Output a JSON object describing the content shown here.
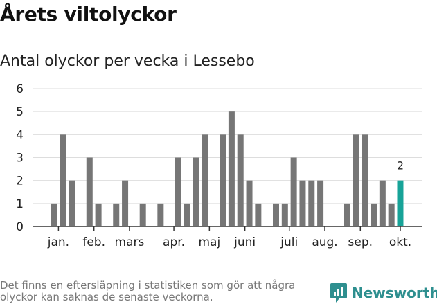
{
  "header": {
    "title": "Årets viltolyckor",
    "subtitle": "Antal olyckor per vecka i Lessebo"
  },
  "chart_data": {
    "type": "bar",
    "title": "Årets viltolyckor",
    "subtitle": "Antal olyckor per vecka i Lessebo",
    "xlabel": "",
    "ylabel": "",
    "ylim": [
      0,
      6
    ],
    "yticks": [
      0,
      1,
      2,
      3,
      4,
      5,
      6
    ],
    "grid": true,
    "x_unit": "week",
    "weeks": [
      1,
      2,
      3,
      4,
      5,
      6,
      7,
      8,
      9,
      10,
      11,
      12,
      13,
      14,
      15,
      16,
      17,
      18,
      19,
      20,
      21,
      22,
      23,
      24,
      25,
      26,
      27,
      28,
      29,
      30,
      31,
      32,
      33,
      34,
      35,
      36,
      37,
      38,
      39,
      40,
      41
    ],
    "values": [
      1,
      4,
      2,
      0,
      3,
      1,
      0,
      1,
      2,
      0,
      1,
      0,
      1,
      0,
      3,
      1,
      3,
      4,
      0,
      4,
      5,
      4,
      2,
      1,
      0,
      1,
      1,
      3,
      2,
      2,
      2,
      0,
      0,
      1,
      4,
      4,
      1,
      2,
      1,
      2,
      0
    ],
    "highlight_week": 40,
    "highlight_label": "2",
    "month_labels": [
      {
        "label": "jan.",
        "week": 1.5
      },
      {
        "label": "feb.",
        "week": 5.5
      },
      {
        "label": "mars",
        "week": 9.5
      },
      {
        "label": "apr.",
        "week": 14.5
      },
      {
        "label": "maj",
        "week": 18.5
      },
      {
        "label": "juni",
        "week": 22.5
      },
      {
        "label": "juli",
        "week": 27.5
      },
      {
        "label": "aug.",
        "week": 31.5
      },
      {
        "label": "sep.",
        "week": 35.5
      },
      {
        "label": "okt.",
        "week": 40
      }
    ],
    "colors": {
      "bar": "#767676",
      "highlight": "#17a398",
      "grid": "#dddddd",
      "axis": "#333333"
    }
  },
  "footer": {
    "note": "Det finns en eftersläpning i statistiken som gör att några olyckor kan saknas de senaste veckorna.",
    "brand": "Newsworthy",
    "brand_icon": "newsworthy-logo-icon",
    "brand_color": "#2e8f8f"
  }
}
